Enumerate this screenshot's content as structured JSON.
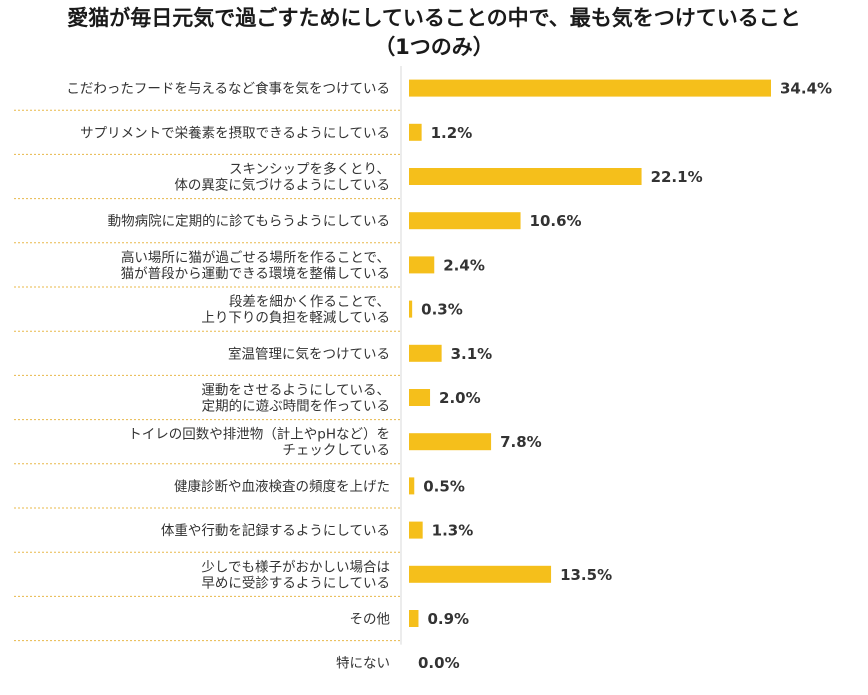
{
  "chart_data": {
    "type": "bar",
    "orientation": "horizontal",
    "title": "愛猫が毎日元気で過ごすためにしていることの中で、最も気をつけていること",
    "subtitle": "（1つのみ）",
    "xlabel": "",
    "ylabel": "",
    "unit": "%",
    "xlim": [
      0,
      34.4
    ],
    "colors": {
      "bar": "#F5BF1B",
      "separator": "#E8B84A"
    },
    "categories": [
      [
        "こだわったフードを与えるなど食事を気をつけている"
      ],
      [
        "サプリメントで栄養素を摂取できるようにしている"
      ],
      [
        "スキンシップを多くとり、",
        "体の異変に気づけるようにしている"
      ],
      [
        "動物病院に定期的に診てもらうようにしている"
      ],
      [
        "高い場所に猫が過ごせる場所を作ることで、",
        "猫が普段から運動できる環境を整備している"
      ],
      [
        "段差を細かく作ることで、",
        "上り下りの負担を軽減している"
      ],
      [
        "室温管理に気をつけている"
      ],
      [
        "運動をさせるようにしている、",
        "定期的に遊ぶ時間を作っている"
      ],
      [
        "トイレの回数や排泄物（計上やpHなど）を",
        "チェックしている"
      ],
      [
        "健康診断や血液検査の頻度を上げた"
      ],
      [
        "体重や行動を記録するようにしている"
      ],
      [
        "少しでも様子がおかしい場合は",
        "早めに受診するようにしている"
      ],
      [
        "その他"
      ],
      [
        "特にない"
      ]
    ],
    "values": [
      34.4,
      1.2,
      22.1,
      10.6,
      2.4,
      0.3,
      3.1,
      2.0,
      7.8,
      0.5,
      1.3,
      13.5,
      0.9,
      0.0
    ],
    "value_labels": [
      "34.4%",
      "1.2%",
      "22.1%",
      "10.6%",
      "2.4%",
      "0.3%",
      "3.1%",
      "2.0%",
      "7.8%",
      "0.5%",
      "1.3%",
      "13.5%",
      "0.9%",
      "0.0%"
    ]
  }
}
